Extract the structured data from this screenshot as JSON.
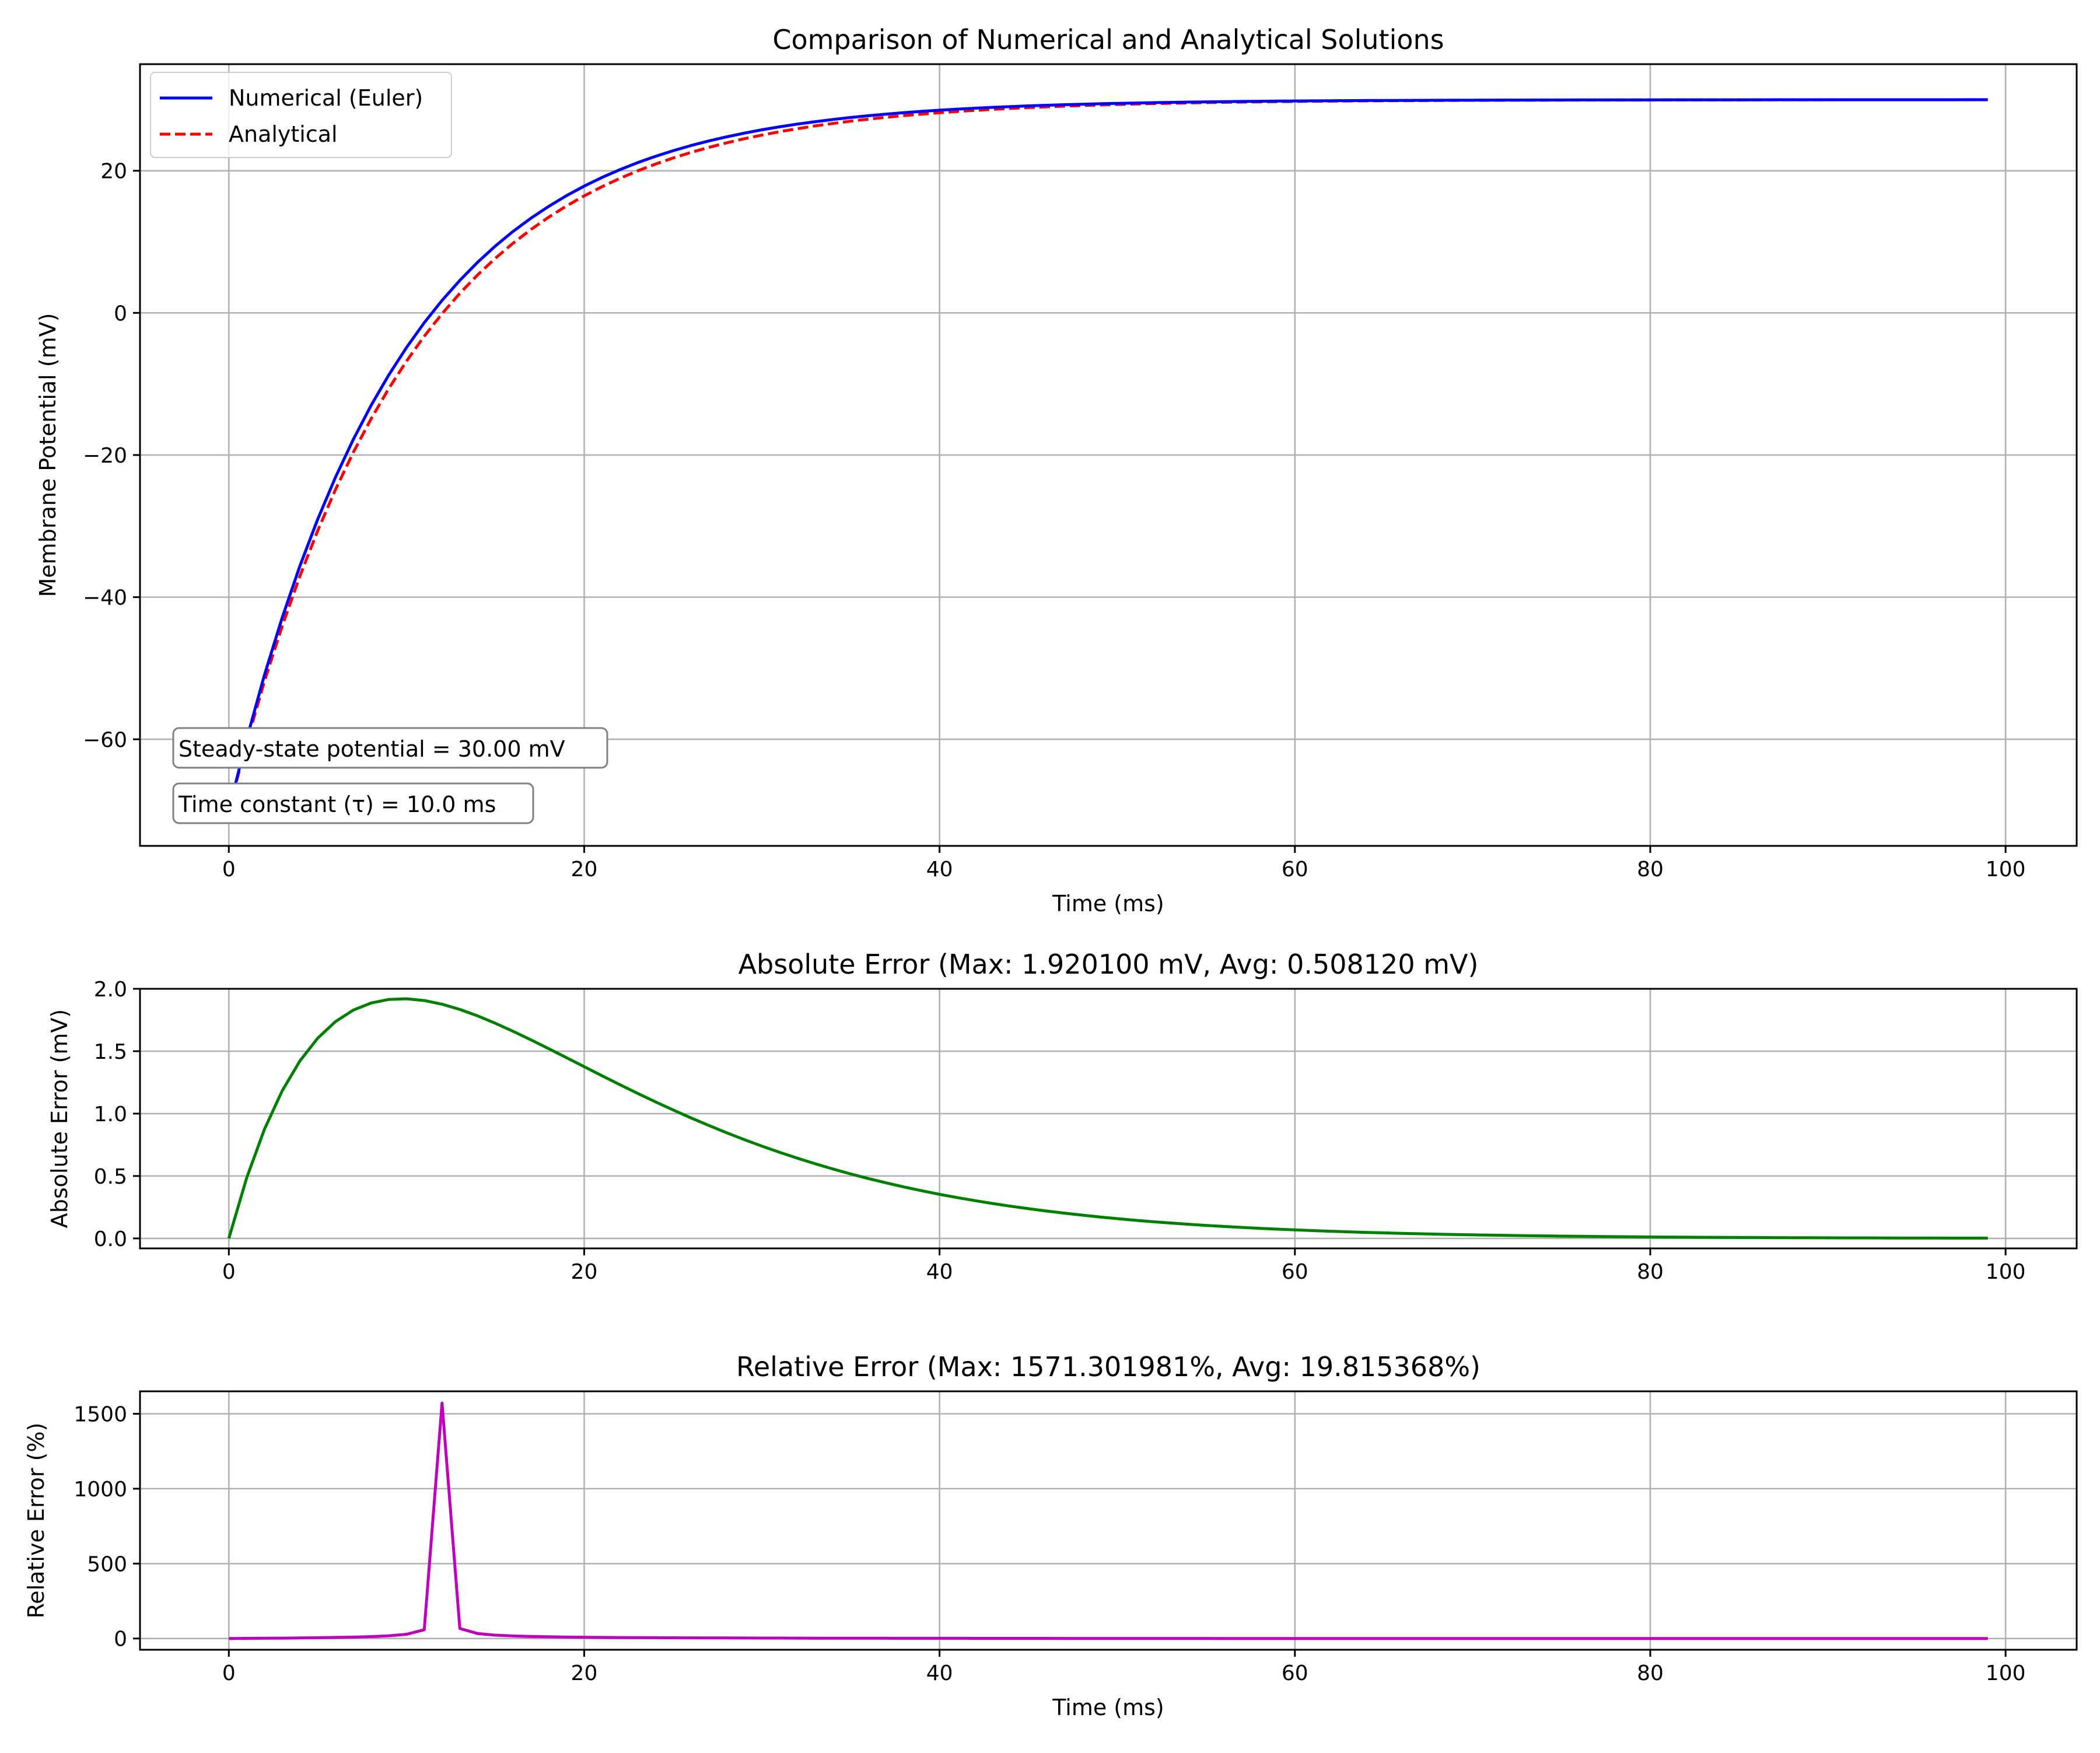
{
  "chart_data": [
    {
      "type": "line",
      "title": "Comparison of Numerical and Analytical Solutions",
      "xlabel": "Time (ms)",
      "ylabel": "Membrane Potential (mV)",
      "xlim": [
        -5,
        104
      ],
      "ylim": [
        -75,
        35
      ],
      "xticks": [
        0,
        20,
        40,
        60,
        80,
        100
      ],
      "xtick_labels": [
        "0",
        "20",
        "40",
        "60",
        "80",
        "100"
      ],
      "yticks": [
        -60,
        -40,
        -20,
        0,
        20
      ],
      "ytick_labels": [
        "−60",
        "−40",
        "−20",
        "0",
        "20"
      ],
      "grid": true,
      "legend": "top-left",
      "model": {
        "v0": -70,
        "v_inf": 30,
        "tau": 10,
        "t_start": 0,
        "t_end": 99,
        "dt": 1
      },
      "series": [
        {
          "name": "Numerical (Euler)",
          "color": "#0000ff",
          "style": "solid",
          "method": "euler"
        },
        {
          "name": "Analytical",
          "color": "#ff0000",
          "style": "dashed",
          "method": "exact"
        }
      ],
      "annotations": [
        "Steady-state potential = 30.00 mV",
        "Time constant (τ) = 10.0 ms"
      ]
    },
    {
      "type": "line",
      "title": "Absolute Error (Max: 1.920100 mV, Avg: 0.508120 mV)",
      "xlabel": "",
      "ylabel": "Absolute Error (mV)",
      "xlim": [
        -5,
        104
      ],
      "ylim": [
        -0.08,
        2.0
      ],
      "xticks": [
        0,
        20,
        40,
        60,
        80,
        100
      ],
      "xtick_labels": [
        "0",
        "20",
        "40",
        "60",
        "80",
        "100"
      ],
      "yticks": [
        0,
        0.5,
        1.0,
        1.5,
        2.0
      ],
      "ytick_labels": [
        "0.0",
        "0.5",
        "1.0",
        "1.5",
        "2.0"
      ],
      "grid": true,
      "series": [
        {
          "color": "#008000",
          "style": "solid",
          "metric": "absolute"
        }
      ]
    },
    {
      "type": "line",
      "title": "Relative Error (Max: 1571.301981%, Avg: 19.815368%)",
      "xlabel": "Time (ms)",
      "ylabel": "Relative Error (%)",
      "xlim": [
        -5,
        104
      ],
      "ylim": [
        -75,
        1650
      ],
      "xticks": [
        0,
        20,
        40,
        60,
        80,
        100
      ],
      "xtick_labels": [
        "0",
        "20",
        "40",
        "60",
        "80",
        "100"
      ],
      "yticks": [
        0,
        500,
        1000,
        1500
      ],
      "ytick_labels": [
        "0",
        "500",
        "1000",
        "1500"
      ],
      "grid": true,
      "series": [
        {
          "color": "#bf00bf",
          "style": "solid",
          "metric": "relative"
        }
      ],
      "peak": {
        "x": 12,
        "y": 1571.3
      }
    }
  ]
}
